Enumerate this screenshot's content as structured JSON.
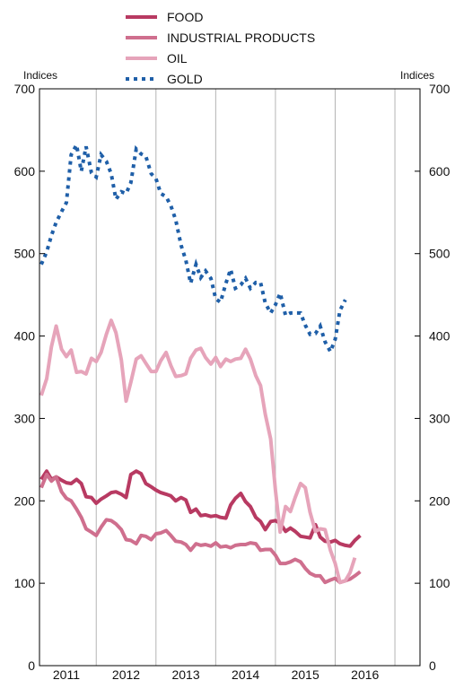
{
  "chart_data": {
    "type": "line",
    "title": "",
    "xlabel": "",
    "ylabel": "",
    "left_axis_unit": "Indices",
    "right_axis_unit": "Indices",
    "ylim": [
      0,
      700
    ],
    "y_ticks": [
      0,
      100,
      200,
      300,
      400,
      500,
      600,
      700
    ],
    "xlim": [
      2010.55,
      2016.92
    ],
    "x_tick_labels": [
      "2011",
      "2012",
      "2013",
      "2014",
      "2015",
      "2016"
    ],
    "year_boundaries": [
      2011.5,
      2012.5,
      2013.5,
      2014.5,
      2015.5,
      2016.5
    ],
    "grid": "vertical lines at year boundaries",
    "legend_position": "top-center",
    "series": [
      {
        "name": "FOOD",
        "color": "#b83a62",
        "style": "solid",
        "points": [
          [
            2010.58,
            226
          ],
          [
            2010.67,
            236
          ],
          [
            2010.75,
            226
          ],
          [
            2010.83,
            229
          ],
          [
            2010.92,
            225
          ],
          [
            2011.0,
            222
          ],
          [
            2011.08,
            221
          ],
          [
            2011.17,
            226
          ],
          [
            2011.25,
            221
          ],
          [
            2011.33,
            205
          ],
          [
            2011.42,
            204
          ],
          [
            2011.5,
            197
          ],
          [
            2011.58,
            202
          ],
          [
            2011.67,
            206
          ],
          [
            2011.75,
            210
          ],
          [
            2011.83,
            211
          ],
          [
            2011.92,
            208
          ],
          [
            2012.0,
            204
          ],
          [
            2012.08,
            232
          ],
          [
            2012.17,
            236
          ],
          [
            2012.25,
            233
          ],
          [
            2012.33,
            221
          ],
          [
            2012.42,
            217
          ],
          [
            2012.5,
            213
          ],
          [
            2012.58,
            210
          ],
          [
            2012.67,
            208
          ],
          [
            2012.75,
            206
          ],
          [
            2012.83,
            200
          ],
          [
            2012.92,
            204
          ],
          [
            2013.0,
            201
          ],
          [
            2013.08,
            186
          ],
          [
            2013.17,
            190
          ],
          [
            2013.25,
            182
          ],
          [
            2013.33,
            183
          ],
          [
            2013.42,
            181
          ],
          [
            2013.5,
            182
          ],
          [
            2013.58,
            180
          ],
          [
            2013.67,
            179
          ],
          [
            2013.75,
            195
          ],
          [
            2013.83,
            203
          ],
          [
            2013.92,
            209
          ],
          [
            2014.0,
            199
          ],
          [
            2014.08,
            193
          ],
          [
            2014.17,
            180
          ],
          [
            2014.25,
            175
          ],
          [
            2014.33,
            165
          ],
          [
            2014.42,
            175
          ],
          [
            2014.5,
            176
          ],
          [
            2014.58,
            173
          ],
          [
            2014.67,
            163
          ],
          [
            2014.75,
            167
          ],
          [
            2014.83,
            163
          ],
          [
            2014.92,
            157
          ],
          [
            2015.0,
            156
          ],
          [
            2015.08,
            155
          ],
          [
            2015.17,
            171
          ],
          [
            2015.25,
            156
          ],
          [
            2015.33,
            151
          ],
          [
            2015.42,
            150
          ],
          [
            2015.5,
            152
          ],
          [
            2015.58,
            148
          ],
          [
            2015.67,
            146
          ],
          [
            2015.75,
            145
          ],
          [
            2015.83,
            152
          ],
          [
            2015.92,
            158
          ]
        ]
      },
      {
        "name": "INDUSTRIAL PRODUCTS",
        "color": "#cf6f8e",
        "style": "solid",
        "points": [
          [
            2010.58,
            216
          ],
          [
            2010.67,
            232
          ],
          [
            2010.75,
            224
          ],
          [
            2010.83,
            229
          ],
          [
            2010.92,
            211
          ],
          [
            2011.0,
            203
          ],
          [
            2011.08,
            200
          ],
          [
            2011.17,
            190
          ],
          [
            2011.25,
            180
          ],
          [
            2011.33,
            166
          ],
          [
            2011.42,
            162
          ],
          [
            2011.5,
            158
          ],
          [
            2011.58,
            168
          ],
          [
            2011.67,
            177
          ],
          [
            2011.75,
            176
          ],
          [
            2011.83,
            172
          ],
          [
            2011.92,
            165
          ],
          [
            2012.0,
            153
          ],
          [
            2012.08,
            152
          ],
          [
            2012.17,
            148
          ],
          [
            2012.25,
            158
          ],
          [
            2012.33,
            157
          ],
          [
            2012.42,
            153
          ],
          [
            2012.5,
            160
          ],
          [
            2012.58,
            161
          ],
          [
            2012.67,
            164
          ],
          [
            2012.75,
            158
          ],
          [
            2012.83,
            151
          ],
          [
            2012.92,
            150
          ],
          [
            2013.0,
            147
          ],
          [
            2013.08,
            140
          ],
          [
            2013.17,
            148
          ],
          [
            2013.25,
            146
          ],
          [
            2013.33,
            147
          ],
          [
            2013.42,
            145
          ],
          [
            2013.5,
            149
          ],
          [
            2013.58,
            144
          ],
          [
            2013.67,
            145
          ],
          [
            2013.75,
            143
          ],
          [
            2013.83,
            146
          ],
          [
            2013.92,
            147
          ],
          [
            2014.0,
            147
          ],
          [
            2014.08,
            149
          ],
          [
            2014.17,
            148
          ],
          [
            2014.25,
            140
          ],
          [
            2014.33,
            141
          ],
          [
            2014.42,
            141
          ],
          [
            2014.5,
            134
          ],
          [
            2014.58,
            124
          ],
          [
            2014.67,
            124
          ],
          [
            2014.75,
            126
          ],
          [
            2014.83,
            129
          ],
          [
            2014.92,
            126
          ],
          [
            2015.0,
            118
          ],
          [
            2015.08,
            112
          ],
          [
            2015.17,
            109
          ],
          [
            2015.25,
            109
          ],
          [
            2015.33,
            101
          ],
          [
            2015.42,
            104
          ],
          [
            2015.5,
            106
          ],
          [
            2015.58,
            101
          ],
          [
            2015.67,
            103
          ],
          [
            2015.75,
            105
          ],
          [
            2015.83,
            109
          ],
          [
            2015.92,
            114
          ]
        ]
      },
      {
        "name": "OIL",
        "color": "#e6a4ba",
        "style": "solid",
        "points": [
          [
            2010.58,
            328
          ],
          [
            2010.67,
            348
          ],
          [
            2010.75,
            387
          ],
          [
            2010.83,
            412
          ],
          [
            2010.92,
            384
          ],
          [
            2011.0,
            375
          ],
          [
            2011.08,
            383
          ],
          [
            2011.17,
            356
          ],
          [
            2011.25,
            357
          ],
          [
            2011.33,
            354
          ],
          [
            2011.42,
            373
          ],
          [
            2011.5,
            369
          ],
          [
            2011.58,
            380
          ],
          [
            2011.67,
            402
          ],
          [
            2011.75,
            419
          ],
          [
            2011.83,
            404
          ],
          [
            2011.92,
            371
          ],
          [
            2012.0,
            321
          ],
          [
            2012.08,
            344
          ],
          [
            2012.17,
            372
          ],
          [
            2012.25,
            376
          ],
          [
            2012.33,
            367
          ],
          [
            2012.42,
            357
          ],
          [
            2012.5,
            357
          ],
          [
            2012.58,
            370
          ],
          [
            2012.67,
            380
          ],
          [
            2012.75,
            364
          ],
          [
            2012.83,
            351
          ],
          [
            2012.92,
            352
          ],
          [
            2013.0,
            354
          ],
          [
            2013.08,
            373
          ],
          [
            2013.17,
            383
          ],
          [
            2013.25,
            385
          ],
          [
            2013.33,
            374
          ],
          [
            2013.42,
            366
          ],
          [
            2013.5,
            374
          ],
          [
            2013.58,
            363
          ],
          [
            2013.67,
            372
          ],
          [
            2013.75,
            369
          ],
          [
            2013.83,
            372
          ],
          [
            2013.92,
            373
          ],
          [
            2014.0,
            384
          ],
          [
            2014.08,
            372
          ],
          [
            2014.17,
            352
          ],
          [
            2014.25,
            340
          ],
          [
            2014.33,
            305
          ],
          [
            2014.42,
            275
          ],
          [
            2014.5,
            213
          ],
          [
            2014.58,
            162
          ],
          [
            2014.67,
            193
          ],
          [
            2014.75,
            187
          ],
          [
            2014.83,
            204
          ],
          [
            2014.92,
            221
          ],
          [
            2015.0,
            216
          ],
          [
            2015.08,
            186
          ],
          [
            2015.17,
            163
          ],
          [
            2015.25,
            166
          ],
          [
            2015.33,
            165
          ],
          [
            2015.42,
            140
          ],
          [
            2015.5,
            124
          ],
          [
            2015.58,
            101
          ],
          [
            2015.67,
            103
          ],
          [
            2015.75,
            113
          ],
          [
            2015.83,
            131
          ]
        ]
      },
      {
        "name": "GOLD",
        "color": "#1f5fa8",
        "style": "dotted",
        "points": [
          [
            2010.58,
            487
          ],
          [
            2010.67,
            502
          ],
          [
            2010.75,
            522
          ],
          [
            2010.83,
            538
          ],
          [
            2010.92,
            551
          ],
          [
            2011.0,
            562
          ],
          [
            2011.08,
            620
          ],
          [
            2011.17,
            632
          ],
          [
            2011.25,
            600
          ],
          [
            2011.33,
            630
          ],
          [
            2011.42,
            598
          ],
          [
            2011.5,
            593
          ],
          [
            2011.58,
            620
          ],
          [
            2011.67,
            612
          ],
          [
            2011.75,
            597
          ],
          [
            2011.83,
            566
          ],
          [
            2011.92,
            575
          ],
          [
            2012.0,
            573
          ],
          [
            2012.08,
            586
          ],
          [
            2012.17,
            627
          ],
          [
            2012.25,
            621
          ],
          [
            2012.33,
            618
          ],
          [
            2012.42,
            597
          ],
          [
            2012.5,
            591
          ],
          [
            2012.58,
            573
          ],
          [
            2012.67,
            569
          ],
          [
            2012.75,
            558
          ],
          [
            2012.83,
            541
          ],
          [
            2012.92,
            510
          ],
          [
            2013.0,
            492
          ],
          [
            2013.08,
            464
          ],
          [
            2013.17,
            487
          ],
          [
            2013.25,
            471
          ],
          [
            2013.33,
            479
          ],
          [
            2013.42,
            470
          ],
          [
            2013.5,
            445
          ],
          [
            2013.58,
            441
          ],
          [
            2013.67,
            464
          ],
          [
            2013.75,
            481
          ],
          [
            2013.83,
            458
          ],
          [
            2013.92,
            462
          ],
          [
            2014.0,
            470
          ],
          [
            2014.08,
            458
          ],
          [
            2014.17,
            465
          ],
          [
            2014.25,
            465
          ],
          [
            2014.33,
            440
          ],
          [
            2014.42,
            428
          ],
          [
            2014.5,
            438
          ],
          [
            2014.58,
            452
          ],
          [
            2014.67,
            425
          ],
          [
            2014.75,
            428
          ],
          [
            2014.83,
            428
          ],
          [
            2014.92,
            428
          ],
          [
            2015.0,
            413
          ],
          [
            2015.08,
            402
          ],
          [
            2015.17,
            403
          ],
          [
            2015.25,
            412
          ],
          [
            2015.33,
            393
          ],
          [
            2015.42,
            381
          ],
          [
            2015.5,
            396
          ],
          [
            2015.58,
            431
          ],
          [
            2015.67,
            444
          ]
        ]
      }
    ]
  }
}
